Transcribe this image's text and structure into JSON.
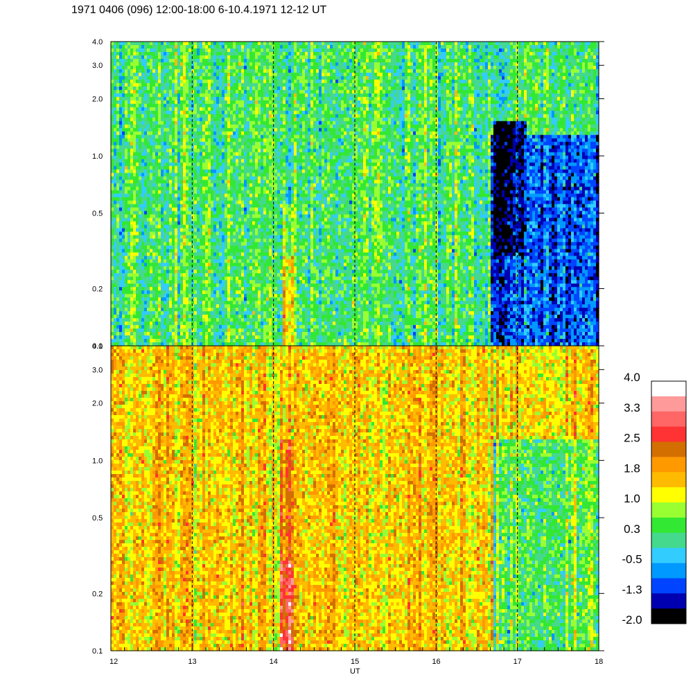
{
  "title": "1971 0406 (096) 12:00-18:00 6-10.4.1971  12-12 UT",
  "chart_data": {
    "type": "heatmap",
    "title": "1971 0406 (096) 12:00-18:00 6-10.4.1971  12-12 UT",
    "xlabel": "UT",
    "x_ticks": [
      "12",
      "13",
      "14",
      "15",
      "16",
      "17",
      "18"
    ],
    "xlim": [
      12,
      18
    ],
    "y_scale": "log",
    "ylim": [
      0.1,
      4.0
    ],
    "y_ticks": [
      "4.0",
      "3.0",
      "2.0",
      "1.0",
      "0.5",
      "0.2",
      "0.1"
    ],
    "y_tick_values": [
      4.0,
      3.0,
      2.0,
      1.0,
      0.5,
      0.2,
      0.1
    ],
    "panels": [
      {
        "name": "upper",
        "dominant_level": 0.3,
        "features": [
          {
            "x_start": 14.1,
            "x_end": 14.25,
            "y_min": 0.1,
            "y_max": 0.3,
            "level": 1.8
          },
          {
            "x_start": 14.1,
            "x_end": 14.25,
            "y_min": 0.3,
            "y_max": 0.55,
            "level": 1.0
          },
          {
            "x_start": 16.68,
            "x_end": 18.0,
            "y_min": 0.1,
            "y_max": 1.3,
            "level": -1.0
          },
          {
            "x_start": 16.7,
            "x_end": 17.1,
            "y_min": 0.3,
            "y_max": 1.5,
            "level": -1.6
          }
        ]
      },
      {
        "name": "lower",
        "dominant_level": 1.5,
        "features": [
          {
            "x_start": 14.08,
            "x_end": 14.25,
            "y_min": 0.1,
            "y_max": 0.3,
            "level": 2.8
          },
          {
            "x_start": 14.08,
            "x_end": 14.25,
            "y_min": 0.3,
            "y_max": 1.3,
            "level": 2.2
          },
          {
            "x_start": 16.7,
            "x_end": 18.0,
            "y_min": 0.1,
            "y_max": 1.3,
            "level": 0.5
          }
        ]
      }
    ],
    "dashed_vertical_lines_x": [
      13,
      14,
      15,
      16,
      17
    ],
    "colorbar": {
      "tick_labels": [
        "4.0",
        "3.3",
        "2.5",
        "1.8",
        "1.0",
        "0.3",
        "-0.5",
        "-1.3",
        "-2.0"
      ],
      "range": [
        -2.0,
        4.0
      ],
      "colors_top_to_bottom": [
        "#ffffff",
        "#ff9a9a",
        "#ff6666",
        "#ff3333",
        "#d26f00",
        "#ff9900",
        "#ffbb00",
        "#ffff00",
        "#99ff33",
        "#33e833",
        "#44d98c",
        "#33ccff",
        "#0099ff",
        "#0044ff",
        "#0000b0",
        "#000000"
      ]
    }
  }
}
